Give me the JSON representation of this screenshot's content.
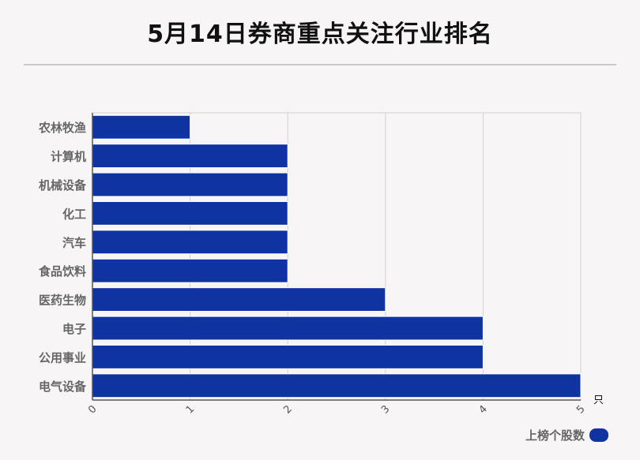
{
  "chart_data": {
    "type": "bar",
    "orientation": "horizontal",
    "title": "5月14日券商重点关注行业排名",
    "categories": [
      "农林牧渔",
      "计算机",
      "机械设备",
      "化工",
      "汽车",
      "食品饮料",
      "医药生物",
      "电子",
      "公用事业",
      "电气设备"
    ],
    "series": [
      {
        "name": "上榜个股数",
        "values": [
          1,
          2,
          2,
          2,
          2,
          2,
          3,
          4,
          4,
          5
        ]
      }
    ],
    "xlim": [
      0,
      5
    ],
    "x_ticks": [
      "0",
      "1",
      "2",
      "3",
      "4",
      "5"
    ],
    "x_unit": "只",
    "grid": true,
    "legend_position": "bottom-right",
    "bar_color": "#0f33a0"
  }
}
